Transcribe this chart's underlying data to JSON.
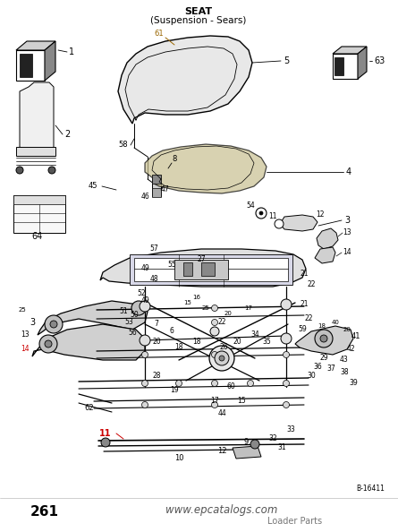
{
  "title_line1": "SEAT",
  "title_line2": "(Suspension - Sears)",
  "page_number": "261",
  "website": "www.epcatalogs.com",
  "subtitle_right": "Loader Parts",
  "diagram_code": "B-16411",
  "bg_color": "#ffffff",
  "border_color": "#000000",
  "title_color": "#000000",
  "fig_width": 4.45,
  "fig_height": 5.94,
  "dpi": 100
}
